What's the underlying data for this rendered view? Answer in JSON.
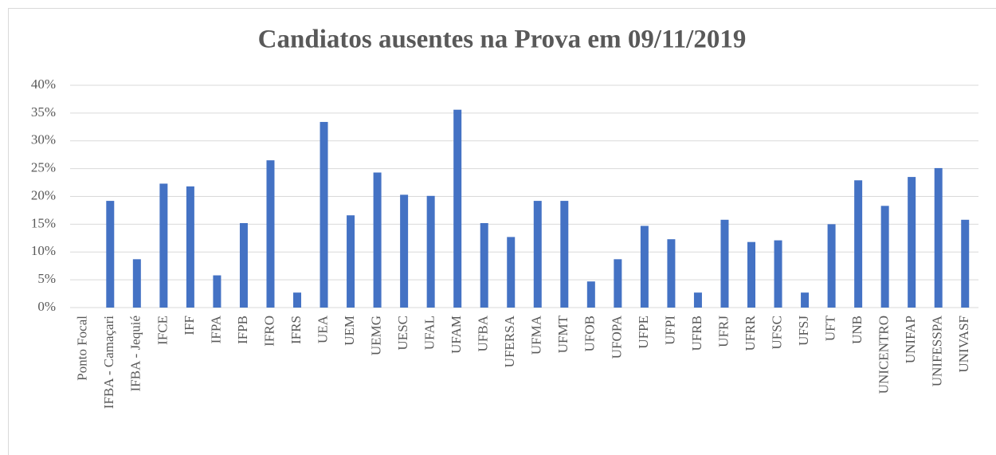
{
  "chart_data": {
    "type": "bar",
    "title": "Candiatos ausentes na Prova em 09/11/2019",
    "categories": [
      "Ponto Focal",
      "IFBA - Camaçari",
      "IFBA - Jequié",
      "IFCE",
      "IFF",
      "IFPA",
      "IFPB",
      "IFRO",
      "IFRS",
      "UEA",
      "UEM",
      "UEMG",
      "UESC",
      "UFAL",
      "UFAM",
      "UFBA",
      "UFERSA",
      "UFMA",
      "UFMT",
      "UFOB",
      "UFOPA",
      "UFPE",
      "UFPI",
      "UFRB",
      "UFRJ",
      "UFRR",
      "UFSC",
      "UFSJ",
      "UFT",
      "UNB",
      "UNICENTRO",
      "UNIFAP",
      "UNIFESSPA",
      "UNIVASF"
    ],
    "values": [
      0,
      19.2,
      8.7,
      22.3,
      21.8,
      5.8,
      15.2,
      26.5,
      2.7,
      33.4,
      16.6,
      24.3,
      20.3,
      20.1,
      35.6,
      15.2,
      12.7,
      19.2,
      19.2,
      4.7,
      8.7,
      14.7,
      12.3,
      2.7,
      15.8,
      11.8,
      12.1,
      2.7,
      15.0,
      22.9,
      18.3,
      23.5,
      25.1,
      15.8
    ],
    "color": "#4472c4",
    "ylim": [
      0,
      40
    ],
    "yticks": [
      {
        "value": 0,
        "label": "0%"
      },
      {
        "value": 5,
        "label": "5%"
      },
      {
        "value": 10,
        "label": "10%"
      },
      {
        "value": 15,
        "label": "15%"
      },
      {
        "value": 20,
        "label": "20%"
      },
      {
        "value": 25,
        "label": "25%"
      },
      {
        "value": 30,
        "label": "30%"
      },
      {
        "value": 35,
        "label": "35%"
      },
      {
        "value": 40,
        "label": "40%"
      }
    ],
    "grid": true
  }
}
